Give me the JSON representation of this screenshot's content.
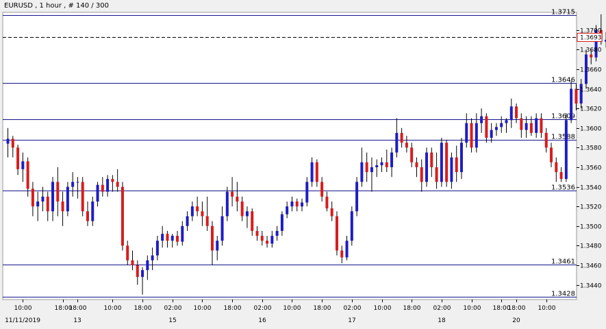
{
  "chart_data": {
    "type": "candlestick",
    "title": "EURUSD , 1 hour , # 140 / 300",
    "ylim": [
      1.3425,
      1.3718
    ],
    "y_ticks": [
      "1.3440",
      "1.3460",
      "1.3480",
      "1.3500",
      "1.3520",
      "1.3540",
      "1.3560",
      "1.3580",
      "1.3600",
      "1.3620",
      "1.3640",
      "1.3660",
      "1.3680",
      "1.3700"
    ],
    "x_ticks": [
      {
        "label": "10:00",
        "i": 3
      },
      {
        "label": "18:00",
        "i": 11
      },
      {
        "label": "18:00",
        "i": 14
      },
      {
        "label": "10:00",
        "i": 21
      },
      {
        "label": "18:00",
        "i": 27
      },
      {
        "label": "02:00",
        "i": 33
      },
      {
        "label": "10:00",
        "i": 39
      },
      {
        "label": "18:00",
        "i": 45
      },
      {
        "label": "02:00",
        "i": 51
      },
      {
        "label": "10:00",
        "i": 57
      },
      {
        "label": "18:00",
        "i": 63
      },
      {
        "label": "02:00",
        "i": 69
      },
      {
        "label": "10:00",
        "i": 75
      },
      {
        "label": "18:00",
        "i": 81
      },
      {
        "label": "02:00",
        "i": 87
      },
      {
        "label": "10:00",
        "i": 93
      },
      {
        "label": "18:00",
        "i": 99
      },
      {
        "label": "18:00",
        "i": 102
      },
      {
        "label": "10:00",
        "i": 108
      }
    ],
    "date_labels": [
      {
        "label": "11/11/2019",
        "i": 3
      },
      {
        "label": "13",
        "i": 14
      },
      {
        "label": "15",
        "i": 33
      },
      {
        "label": "16",
        "i": 51
      },
      {
        "label": "17",
        "i": 69
      },
      {
        "label": "18",
        "i": 87
      },
      {
        "label": "20",
        "i": 102
      }
    ],
    "levels": [
      {
        "value": 1.3715,
        "label": "1.3715"
      },
      {
        "value": 1.3646,
        "label": "1.3646"
      },
      {
        "value": 1.3609,
        "label": "1.3609"
      },
      {
        "value": 1.3588,
        "label": "1.3588"
      },
      {
        "value": 1.3536,
        "label": "1.3536"
      },
      {
        "value": 1.3461,
        "label": "1.3461"
      },
      {
        "value": 1.3428,
        "label": "1.3428"
      }
    ],
    "current_price": {
      "value": 1.3693,
      "label": "1.3693"
    },
    "candles": [
      {
        "o": 1.3584,
        "h": 1.36,
        "l": 1.357,
        "c": 1.3589
      },
      {
        "o": 1.3589,
        "h": 1.3592,
        "l": 1.357,
        "c": 1.358
      },
      {
        "o": 1.358,
        "h": 1.3583,
        "l": 1.3552,
        "c": 1.3558
      },
      {
        "o": 1.3558,
        "h": 1.3575,
        "l": 1.3545,
        "c": 1.3566
      },
      {
        "o": 1.3566,
        "h": 1.357,
        "l": 1.353,
        "c": 1.3538
      },
      {
        "o": 1.3538,
        "h": 1.3545,
        "l": 1.351,
        "c": 1.352
      },
      {
        "o": 1.352,
        "h": 1.3535,
        "l": 1.3505,
        "c": 1.3525
      },
      {
        "o": 1.3525,
        "h": 1.354,
        "l": 1.3515,
        "c": 1.353
      },
      {
        "o": 1.353,
        "h": 1.3535,
        "l": 1.3505,
        "c": 1.3515
      },
      {
        "o": 1.3515,
        "h": 1.355,
        "l": 1.3505,
        "c": 1.3545
      },
      {
        "o": 1.3545,
        "h": 1.356,
        "l": 1.351,
        "c": 1.3525
      },
      {
        "o": 1.3525,
        "h": 1.3535,
        "l": 1.35,
        "c": 1.3515
      },
      {
        "o": 1.3515,
        "h": 1.3545,
        "l": 1.351,
        "c": 1.354
      },
      {
        "o": 1.354,
        "h": 1.3555,
        "l": 1.353,
        "c": 1.3545
      },
      {
        "o": 1.3545,
        "h": 1.355,
        "l": 1.3528,
        "c": 1.3545
      },
      {
        "o": 1.3545,
        "h": 1.355,
        "l": 1.351,
        "c": 1.3515
      },
      {
        "o": 1.3515,
        "h": 1.3525,
        "l": 1.35,
        "c": 1.3505
      },
      {
        "o": 1.3505,
        "h": 1.353,
        "l": 1.35,
        "c": 1.3525
      },
      {
        "o": 1.3525,
        "h": 1.3545,
        "l": 1.352,
        "c": 1.3542
      },
      {
        "o": 1.3542,
        "h": 1.355,
        "l": 1.353,
        "c": 1.3535
      },
      {
        "o": 1.3535,
        "h": 1.3552,
        "l": 1.353,
        "c": 1.3548
      },
      {
        "o": 1.3548,
        "h": 1.3552,
        "l": 1.3535,
        "c": 1.3545
      },
      {
        "o": 1.3545,
        "h": 1.3558,
        "l": 1.3535,
        "c": 1.354
      },
      {
        "o": 1.354,
        "h": 1.3545,
        "l": 1.3475,
        "c": 1.348
      },
      {
        "o": 1.348,
        "h": 1.3485,
        "l": 1.346,
        "c": 1.3465
      },
      {
        "o": 1.3465,
        "h": 1.3475,
        "l": 1.3455,
        "c": 1.346
      },
      {
        "o": 1.346,
        "h": 1.3465,
        "l": 1.344,
        "c": 1.3448
      },
      {
        "o": 1.3448,
        "h": 1.3458,
        "l": 1.343,
        "c": 1.3455
      },
      {
        "o": 1.3455,
        "h": 1.347,
        "l": 1.3445,
        "c": 1.3465
      },
      {
        "o": 1.3465,
        "h": 1.3478,
        "l": 1.3455,
        "c": 1.347
      },
      {
        "o": 1.347,
        "h": 1.349,
        "l": 1.3465,
        "c": 1.3485
      },
      {
        "o": 1.3485,
        "h": 1.35,
        "l": 1.3478,
        "c": 1.3492
      },
      {
        "o": 1.3492,
        "h": 1.3495,
        "l": 1.3478,
        "c": 1.3485
      },
      {
        "o": 1.3485,
        "h": 1.3492,
        "l": 1.3478,
        "c": 1.349
      },
      {
        "o": 1.349,
        "h": 1.3495,
        "l": 1.348,
        "c": 1.3484
      },
      {
        "o": 1.3484,
        "h": 1.3505,
        "l": 1.348,
        "c": 1.35
      },
      {
        "o": 1.35,
        "h": 1.3515,
        "l": 1.3495,
        "c": 1.351
      },
      {
        "o": 1.351,
        "h": 1.3525,
        "l": 1.3505,
        "c": 1.352
      },
      {
        "o": 1.352,
        "h": 1.353,
        "l": 1.351,
        "c": 1.3515
      },
      {
        "o": 1.3515,
        "h": 1.3525,
        "l": 1.35,
        "c": 1.351
      },
      {
        "o": 1.351,
        "h": 1.353,
        "l": 1.3495,
        "c": 1.35
      },
      {
        "o": 1.35,
        "h": 1.3505,
        "l": 1.346,
        "c": 1.3475
      },
      {
        "o": 1.3475,
        "h": 1.349,
        "l": 1.3465,
        "c": 1.3485
      },
      {
        "o": 1.3485,
        "h": 1.352,
        "l": 1.348,
        "c": 1.351
      },
      {
        "o": 1.351,
        "h": 1.354,
        "l": 1.3505,
        "c": 1.3535
      },
      {
        "o": 1.3535,
        "h": 1.355,
        "l": 1.352,
        "c": 1.353
      },
      {
        "o": 1.353,
        "h": 1.3545,
        "l": 1.3515,
        "c": 1.3525
      },
      {
        "o": 1.3525,
        "h": 1.353,
        "l": 1.3505,
        "c": 1.351
      },
      {
        "o": 1.351,
        "h": 1.352,
        "l": 1.3498,
        "c": 1.3515
      },
      {
        "o": 1.3515,
        "h": 1.3518,
        "l": 1.349,
        "c": 1.3495
      },
      {
        "o": 1.3495,
        "h": 1.35,
        "l": 1.3485,
        "c": 1.349
      },
      {
        "o": 1.349,
        "h": 1.3495,
        "l": 1.348,
        "c": 1.3485
      },
      {
        "o": 1.3485,
        "h": 1.349,
        "l": 1.3478,
        "c": 1.3482
      },
      {
        "o": 1.3482,
        "h": 1.3495,
        "l": 1.3478,
        "c": 1.349
      },
      {
        "o": 1.349,
        "h": 1.35,
        "l": 1.3485,
        "c": 1.3495
      },
      {
        "o": 1.3495,
        "h": 1.3515,
        "l": 1.349,
        "c": 1.3512
      },
      {
        "o": 1.3512,
        "h": 1.3525,
        "l": 1.3508,
        "c": 1.352
      },
      {
        "o": 1.352,
        "h": 1.353,
        "l": 1.3515,
        "c": 1.3525
      },
      {
        "o": 1.3525,
        "h": 1.3528,
        "l": 1.3515,
        "c": 1.352
      },
      {
        "o": 1.352,
        "h": 1.3528,
        "l": 1.3515,
        "c": 1.3524
      },
      {
        "o": 1.3524,
        "h": 1.355,
        "l": 1.352,
        "c": 1.3545
      },
      {
        "o": 1.3545,
        "h": 1.357,
        "l": 1.354,
        "c": 1.3565
      },
      {
        "o": 1.3565,
        "h": 1.3568,
        "l": 1.354,
        "c": 1.3545
      },
      {
        "o": 1.3545,
        "h": 1.355,
        "l": 1.3525,
        "c": 1.353
      },
      {
        "o": 1.353,
        "h": 1.3535,
        "l": 1.3515,
        "c": 1.3518
      },
      {
        "o": 1.3518,
        "h": 1.3525,
        "l": 1.3505,
        "c": 1.351
      },
      {
        "o": 1.351,
        "h": 1.3515,
        "l": 1.347,
        "c": 1.3475
      },
      {
        "o": 1.3475,
        "h": 1.348,
        "l": 1.3462,
        "c": 1.3468
      },
      {
        "o": 1.3468,
        "h": 1.349,
        "l": 1.3465,
        "c": 1.3485
      },
      {
        "o": 1.3485,
        "h": 1.352,
        "l": 1.348,
        "c": 1.3515
      },
      {
        "o": 1.3515,
        "h": 1.355,
        "l": 1.351,
        "c": 1.3545
      },
      {
        "o": 1.3545,
        "h": 1.358,
        "l": 1.354,
        "c": 1.3565
      },
      {
        "o": 1.3565,
        "h": 1.3575,
        "l": 1.3545,
        "c": 1.3555
      },
      {
        "o": 1.3555,
        "h": 1.357,
        "l": 1.3535,
        "c": 1.356
      },
      {
        "o": 1.356,
        "h": 1.3568,
        "l": 1.355,
        "c": 1.3562
      },
      {
        "o": 1.3562,
        "h": 1.357,
        "l": 1.3555,
        "c": 1.3565
      },
      {
        "o": 1.3565,
        "h": 1.3578,
        "l": 1.3555,
        "c": 1.356
      },
      {
        "o": 1.356,
        "h": 1.358,
        "l": 1.355,
        "c": 1.3575
      },
      {
        "o": 1.3575,
        "h": 1.361,
        "l": 1.357,
        "c": 1.3595
      },
      {
        "o": 1.3595,
        "h": 1.36,
        "l": 1.358,
        "c": 1.3585
      },
      {
        "o": 1.3585,
        "h": 1.3592,
        "l": 1.3575,
        "c": 1.358
      },
      {
        "o": 1.358,
        "h": 1.3585,
        "l": 1.356,
        "c": 1.3565
      },
      {
        "o": 1.3565,
        "h": 1.357,
        "l": 1.355,
        "c": 1.356
      },
      {
        "o": 1.356,
        "h": 1.3568,
        "l": 1.3535,
        "c": 1.3545
      },
      {
        "o": 1.3545,
        "h": 1.358,
        "l": 1.354,
        "c": 1.3575
      },
      {
        "o": 1.3575,
        "h": 1.358,
        "l": 1.355,
        "c": 1.356
      },
      {
        "o": 1.356,
        "h": 1.3575,
        "l": 1.3538,
        "c": 1.3545
      },
      {
        "o": 1.3545,
        "h": 1.359,
        "l": 1.354,
        "c": 1.3585
      },
      {
        "o": 1.3585,
        "h": 1.3588,
        "l": 1.354,
        "c": 1.3545
      },
      {
        "o": 1.3545,
        "h": 1.3575,
        "l": 1.3538,
        "c": 1.357
      },
      {
        "o": 1.357,
        "h": 1.3582,
        "l": 1.3545,
        "c": 1.3555
      },
      {
        "o": 1.3555,
        "h": 1.359,
        "l": 1.3548,
        "c": 1.3585
      },
      {
        "o": 1.3585,
        "h": 1.3615,
        "l": 1.358,
        "c": 1.3605
      },
      {
        "o": 1.3605,
        "h": 1.361,
        "l": 1.3575,
        "c": 1.358
      },
      {
        "o": 1.358,
        "h": 1.3615,
        "l": 1.3575,
        "c": 1.3605
      },
      {
        "o": 1.3605,
        "h": 1.362,
        "l": 1.3595,
        "c": 1.3612
      },
      {
        "o": 1.3612,
        "h": 1.3615,
        "l": 1.3585,
        "c": 1.359
      },
      {
        "o": 1.359,
        "h": 1.3605,
        "l": 1.3585,
        "c": 1.3598
      },
      {
        "o": 1.3598,
        "h": 1.3605,
        "l": 1.3592,
        "c": 1.3601
      },
      {
        "o": 1.3601,
        "h": 1.3612,
        "l": 1.3595,
        "c": 1.3605
      },
      {
        "o": 1.3605,
        "h": 1.361,
        "l": 1.3595,
        "c": 1.3608
      },
      {
        "o": 1.3608,
        "h": 1.363,
        "l": 1.36,
        "c": 1.3622
      },
      {
        "o": 1.3622,
        "h": 1.3625,
        "l": 1.3605,
        "c": 1.361
      },
      {
        "o": 1.361,
        "h": 1.3615,
        "l": 1.359,
        "c": 1.3598
      },
      {
        "o": 1.3598,
        "h": 1.3612,
        "l": 1.359,
        "c": 1.3605
      },
      {
        "o": 1.3605,
        "h": 1.3612,
        "l": 1.3592,
        "c": 1.3595
      },
      {
        "o": 1.3595,
        "h": 1.3615,
        "l": 1.359,
        "c": 1.361
      },
      {
        "o": 1.361,
        "h": 1.3615,
        "l": 1.359,
        "c": 1.3595
      },
      {
        "o": 1.3595,
        "h": 1.36,
        "l": 1.3575,
        "c": 1.358
      },
      {
        "o": 1.358,
        "h": 1.3585,
        "l": 1.356,
        "c": 1.3565
      },
      {
        "o": 1.3565,
        "h": 1.357,
        "l": 1.3545,
        "c": 1.3555
      },
      {
        "o": 1.3555,
        "h": 1.356,
        "l": 1.3545,
        "c": 1.3548
      },
      {
        "o": 1.3548,
        "h": 1.3615,
        "l": 1.3545,
        "c": 1.3608
      },
      {
        "o": 1.3608,
        "h": 1.3648,
        "l": 1.3605,
        "c": 1.364
      },
      {
        "o": 1.364,
        "h": 1.3645,
        "l": 1.3618,
        "c": 1.3625
      },
      {
        "o": 1.3625,
        "h": 1.365,
        "l": 1.362,
        "c": 1.3645
      },
      {
        "o": 1.3645,
        "h": 1.368,
        "l": 1.364,
        "c": 1.3675
      },
      {
        "o": 1.3675,
        "h": 1.368,
        "l": 1.3665,
        "c": 1.3672
      },
      {
        "o": 1.3672,
        "h": 1.3705,
        "l": 1.3668,
        "c": 1.37
      },
      {
        "o": 1.37,
        "h": 1.3716,
        "l": 1.3685,
        "c": 1.3688
      },
      {
        "o": 1.3688,
        "h": 1.3698,
        "l": 1.3682,
        "c": 1.369
      },
      {
        "o": 1.369,
        "h": 1.3702,
        "l": 1.3685,
        "c": 1.3693
      }
    ],
    "colors": {
      "up": "#1d1dc4",
      "down": "#d81c1c",
      "levels": "#14148c",
      "current": "#d81c1c",
      "grid": "#c8c8d0",
      "background": "#ffffff"
    }
  }
}
